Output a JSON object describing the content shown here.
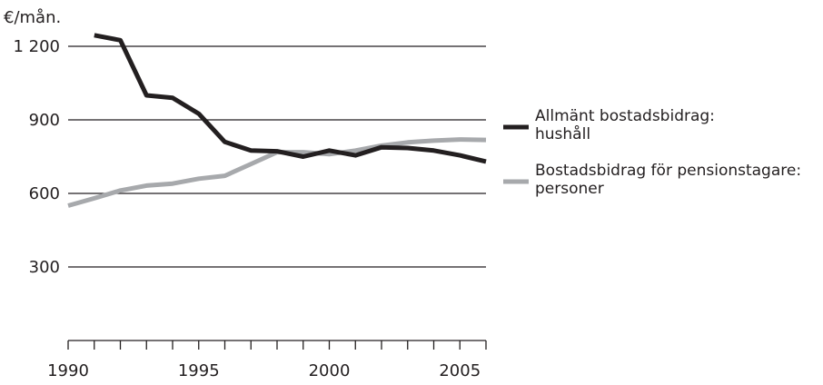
{
  "chart_data": {
    "type": "line",
    "ylabel": "€/mån.",
    "ylim": [
      0,
      1300
    ],
    "yticks": [
      300,
      600,
      900,
      1200
    ],
    "ytick_labels": [
      "300",
      "600",
      "900",
      "1 200"
    ],
    "xlim": [
      1990,
      2006
    ],
    "xticks_minor": [
      1990,
      1991,
      1992,
      1993,
      1994,
      1995,
      1996,
      1997,
      1998,
      1999,
      2000,
      2001,
      2002,
      2003,
      2004,
      2005,
      2006
    ],
    "xtick_labels": [
      "1990",
      "1995",
      "2000",
      "2005"
    ],
    "xtick_label_years": [
      1990,
      1995,
      2000,
      2005
    ],
    "grid": true,
    "legend_position": "right",
    "series": [
      {
        "name_lines": [
          "Allmänt bostadsbidrag:",
          "hushåll"
        ],
        "color": "#231f20",
        "x": [
          1991,
          1992,
          1993,
          1994,
          1995,
          1996,
          1997,
          1998,
          1999,
          2000,
          2001,
          2002,
          2003,
          2004,
          2005,
          2006
        ],
        "values": [
          1245,
          1225,
          1000,
          990,
          925,
          810,
          775,
          772,
          750,
          775,
          755,
          788,
          785,
          775,
          755,
          730
        ]
      },
      {
        "name_lines": [
          "Bostadsbidrag för pensionstagare:",
          "personer"
        ],
        "color": "#a7a9ac",
        "x": [
          1990,
          1991,
          1992,
          1993,
          1994,
          1995,
          1996,
          1997,
          1998,
          1999,
          2000,
          2001,
          2002,
          2003,
          2004,
          2005,
          2006
        ],
        "values": [
          550,
          580,
          612,
          632,
          640,
          660,
          672,
          720,
          768,
          768,
          760,
          775,
          795,
          808,
          815,
          820,
          818
        ]
      }
    ]
  }
}
